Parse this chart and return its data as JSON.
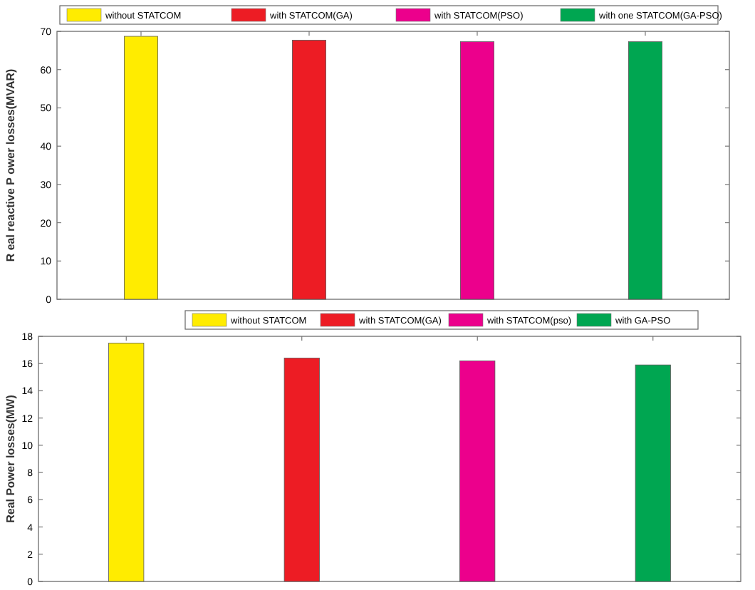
{
  "chart_data": [
    {
      "type": "bar",
      "stacked": true,
      "ylabel": "R eal reactive  P ower losses(MVAR)",
      "categories": [
        null,
        null,
        null,
        null
      ],
      "ylim": [
        0,
        70
      ],
      "yticks": [
        0,
        10,
        20,
        30,
        40,
        50,
        60,
        70
      ],
      "legend": "top",
      "grid": false,
      "series": [
        {
          "name": "without STATCOM",
          "color": "#ffec00",
          "values": [
            68.7,
            null,
            null,
            null
          ]
        },
        {
          "name": "with STATCOM(GA)",
          "color": "#ed1c24",
          "values": [
            null,
            67.7,
            null,
            null
          ]
        },
        {
          "name": "with  STATCOM(PSO)",
          "color": "#ec008c",
          "values": [
            null,
            null,
            67.3,
            null
          ]
        },
        {
          "name": "with one STATCOM(GA-PSO)",
          "color": "#00a651",
          "values": [
            null,
            null,
            null,
            67.3
          ]
        }
      ]
    },
    {
      "type": "bar",
      "stacked": true,
      "ylabel": "Real Power losses(MW)",
      "categories": [
        null,
        null,
        null,
        null
      ],
      "ylim": [
        0,
        18
      ],
      "yticks": [
        0,
        2,
        4,
        6,
        8,
        10,
        12,
        14,
        16,
        18
      ],
      "legend": "top right",
      "grid": false,
      "series": [
        {
          "name": "without STATCOM",
          "color": "#ffec00",
          "values": [
            17.5,
            null,
            null,
            null
          ]
        },
        {
          "name": "with STATCOM(GA)",
          "color": "#ed1c24",
          "values": [
            null,
            16.4,
            null,
            null
          ]
        },
        {
          "name": "with  STATCOM(pso)",
          "color": "#ec008c",
          "values": [
            null,
            null,
            16.2,
            null
          ]
        },
        {
          "name": "with GA-PSO",
          "color": "#00a651",
          "values": [
            null,
            null,
            null,
            15.9
          ]
        }
      ]
    }
  ]
}
